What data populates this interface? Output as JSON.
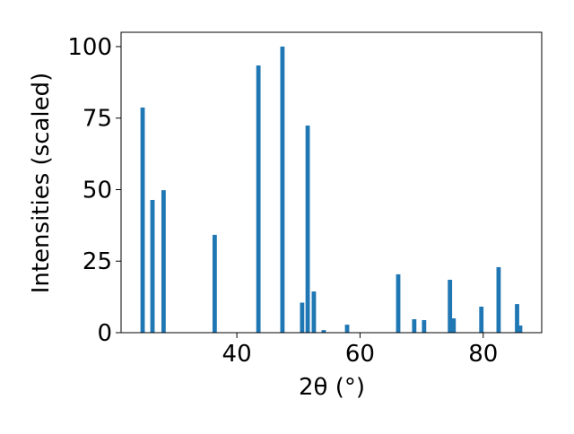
{
  "chart_data": {
    "type": "bar",
    "xlabel": "2θ (°)",
    "ylabel": "Intensities (scaled)",
    "x": [
      24.7,
      26.3,
      28.1,
      36.4,
      43.5,
      47.4,
      50.6,
      51.5,
      52.5,
      54.1,
      57.9,
      66.2,
      68.8,
      70.4,
      74.6,
      75.2,
      79.7,
      82.5,
      85.5,
      86.0
    ],
    "values": [
      78.7,
      46.4,
      49.8,
      34.2,
      93.4,
      100,
      10.5,
      72.4,
      14.4,
      0.9,
      2.8,
      20.4,
      4.7,
      4.4,
      18.5,
      5,
      9.1,
      22.9,
      10,
      2.5
    ],
    "color": "#1f77b4",
    "bar_width": 0.7,
    "xlim": [
      21.2,
      89.5
    ],
    "ylim": [
      0,
      105
    ],
    "xticks": [
      40,
      60,
      80
    ],
    "yticks": [
      0,
      25,
      50,
      75,
      100
    ]
  }
}
